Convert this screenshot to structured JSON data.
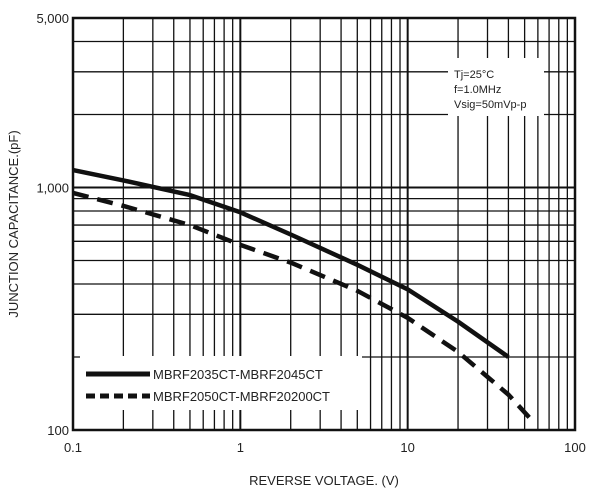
{
  "chart_data": {
    "type": "line",
    "title": "",
    "xlabel": "REVERSE VOLTAGE. (V)",
    "ylabel": "JUNCTION CAPACITANCE.(pF)",
    "x_scale": "log",
    "y_scale": "log",
    "xlim": [
      0.1,
      100
    ],
    "ylim": [
      100,
      5000
    ],
    "x_ticks": [
      {
        "value": 0.1,
        "label": "0.1"
      },
      {
        "value": 1,
        "label": "1"
      },
      {
        "value": 10,
        "label": "10"
      },
      {
        "value": 100,
        "label": "100"
      }
    ],
    "y_ticks": [
      {
        "value": 100,
        "label": "100"
      },
      {
        "value": 1000,
        "label": "1,000"
      },
      {
        "value": 5000,
        "label": "5,000"
      }
    ],
    "grid": true,
    "conditions": [
      "Tj=25°C",
      "f=1.0MHz",
      "Vsig=50mVp-p"
    ],
    "legend_position": "bottom-left",
    "series": [
      {
        "name": "MBRF2035CT-MBRF2045CT",
        "style": "solid",
        "x": [
          0.1,
          0.2,
          0.5,
          1,
          2,
          5,
          10,
          20,
          40
        ],
        "y": [
          1180,
          1070,
          930,
          790,
          640,
          480,
          380,
          280,
          200
        ]
      },
      {
        "name": "MBRF2050CT-MBRF20200CT",
        "style": "dashed",
        "x": [
          0.1,
          0.2,
          0.5,
          1,
          2,
          5,
          10,
          20,
          40,
          55
        ],
        "y": [
          950,
          840,
          700,
          580,
          490,
          375,
          290,
          210,
          140,
          110
        ]
      }
    ],
    "colors": {
      "line": "#111111",
      "grid": "#111111",
      "frame": "#111111",
      "text": "#222222",
      "background": "#ffffff"
    }
  }
}
